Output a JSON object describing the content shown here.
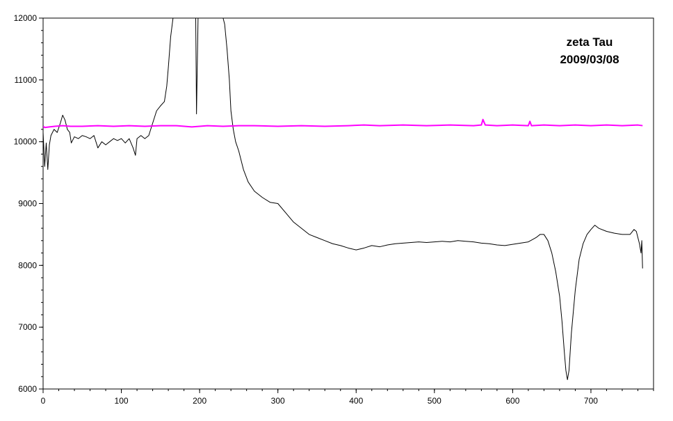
{
  "chart_data": {
    "type": "line",
    "title": "",
    "xlabel": "",
    "ylabel": "",
    "xlim": [
      0,
      780
    ],
    "ylim": [
      6000,
      12000
    ],
    "x_ticks": [
      0,
      100,
      200,
      300,
      400,
      500,
      600,
      700
    ],
    "y_ticks": [
      6000,
      7000,
      8000,
      9000,
      10000,
      11000,
      12000
    ],
    "x_tick_labels": [
      "0",
      "100",
      "200",
      "300",
      "400",
      "500",
      "600",
      "700"
    ],
    "y_tick_labels": [
      "6000",
      "7000",
      "8000",
      "9000",
      "10000",
      "11000",
      "12000"
    ],
    "grid": false,
    "annotation": {
      "line1": "zeta Tau",
      "line2": "2009/03/08"
    },
    "series": [
      {
        "color": "#000000",
        "x": [
          0,
          2,
          4,
          6,
          8,
          10,
          14,
          18,
          22,
          25,
          28,
          31,
          34,
          36,
          40,
          45,
          50,
          55,
          60,
          65,
          70,
          75,
          80,
          85,
          90,
          95,
          100,
          105,
          110,
          115,
          118,
          120,
          125,
          130,
          135,
          140,
          145,
          150,
          155,
          158,
          160,
          163,
          166,
          170,
          174,
          178,
          185,
          195,
          196,
          198,
          200,
          202,
          210,
          220,
          230,
          232,
          235,
          238,
          240,
          243,
          246,
          250,
          256,
          262,
          270,
          280,
          290,
          300,
          310,
          320,
          330,
          340,
          350,
          360,
          370,
          380,
          390,
          400,
          410,
          420,
          430,
          440,
          450,
          460,
          470,
          480,
          490,
          500,
          510,
          520,
          530,
          540,
          550,
          560,
          570,
          580,
          590,
          600,
          610,
          620,
          630,
          635,
          640,
          645,
          650,
          655,
          660,
          663,
          666,
          668,
          670,
          672,
          675,
          680,
          685,
          690,
          695,
          700,
          705,
          710,
          720,
          730,
          740,
          750,
          755,
          758,
          760,
          762,
          764,
          765,
          766
        ],
        "y": [
          10150,
          9600,
          9980,
          9550,
          9950,
          10100,
          10200,
          10150,
          10300,
          10430,
          10350,
          10200,
          10150,
          9980,
          10080,
          10050,
          10100,
          10080,
          10050,
          10100,
          9900,
          10000,
          9950,
          10000,
          10050,
          10020,
          10050,
          9980,
          10050,
          9900,
          9780,
          10050,
          10100,
          10050,
          10100,
          10300,
          10500,
          10580,
          10650,
          10900,
          11200,
          11700,
          12000,
          12000,
          12000,
          12000,
          12000,
          12000,
          10450,
          12000,
          12000,
          12000,
          12000,
          12000,
          12000,
          11900,
          11500,
          11000,
          10500,
          10200,
          10000,
          9850,
          9550,
          9350,
          9200,
          9100,
          9020,
          9000,
          8850,
          8700,
          8600,
          8500,
          8450,
          8400,
          8350,
          8320,
          8280,
          8250,
          8280,
          8320,
          8300,
          8330,
          8350,
          8360,
          8370,
          8380,
          8370,
          8380,
          8390,
          8380,
          8400,
          8390,
          8380,
          8360,
          8350,
          8330,
          8320,
          8340,
          8360,
          8380,
          8450,
          8500,
          8500,
          8400,
          8200,
          7900,
          7500,
          7100,
          6600,
          6300,
          6150,
          6300,
          6900,
          7600,
          8100,
          8350,
          8500,
          8580,
          8650,
          8600,
          8550,
          8520,
          8500,
          8500,
          8580,
          8550,
          8450,
          8350,
          8200,
          8400,
          7950
        ]
      },
      {
        "color": "#ff00ff",
        "x": [
          0,
          2,
          8,
          15,
          25,
          35,
          50,
          70,
          90,
          110,
          130,
          150,
          170,
          190,
          200,
          210,
          230,
          250,
          270,
          300,
          330,
          360,
          390,
          410,
          430,
          460,
          490,
          520,
          550,
          560,
          562,
          565,
          580,
          600,
          620,
          622,
          624,
          640,
          660,
          680,
          700,
          720,
          740,
          760,
          766
        ],
        "y": [
          10250,
          10230,
          10240,
          10250,
          10260,
          10250,
          10250,
          10260,
          10250,
          10260,
          10250,
          10260,
          10260,
          10240,
          10250,
          10260,
          10250,
          10260,
          10260,
          10250,
          10260,
          10250,
          10260,
          10270,
          10260,
          10270,
          10260,
          10270,
          10260,
          10270,
          10360,
          10270,
          10260,
          10270,
          10260,
          10330,
          10260,
          10270,
          10260,
          10270,
          10260,
          10270,
          10260,
          10270,
          10260
        ]
      }
    ]
  }
}
